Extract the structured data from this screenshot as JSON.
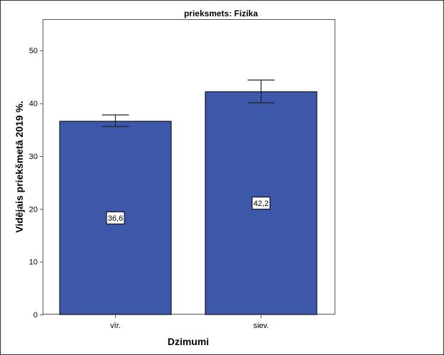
{
  "chart_data": {
    "type": "bar",
    "title": "prieksmets: Fizika",
    "xlabel": "Dzimumi",
    "ylabel": "Vidējais priekšmetā 2019 %.",
    "categories": [
      "vīr.",
      "siev."
    ],
    "values": [
      36.6,
      42.2
    ],
    "data_labels": [
      "36,6",
      "42,2"
    ],
    "error_bars": [
      {
        "lower": 35.6,
        "upper": 37.8
      },
      {
        "lower": 40.1,
        "upper": 44.4
      }
    ],
    "ylim": [
      0,
      55.8
    ],
    "yticks": [
      0,
      10,
      20,
      30,
      40,
      50
    ],
    "grid": false,
    "legend": "none",
    "bar_color": "#3d58a8"
  }
}
